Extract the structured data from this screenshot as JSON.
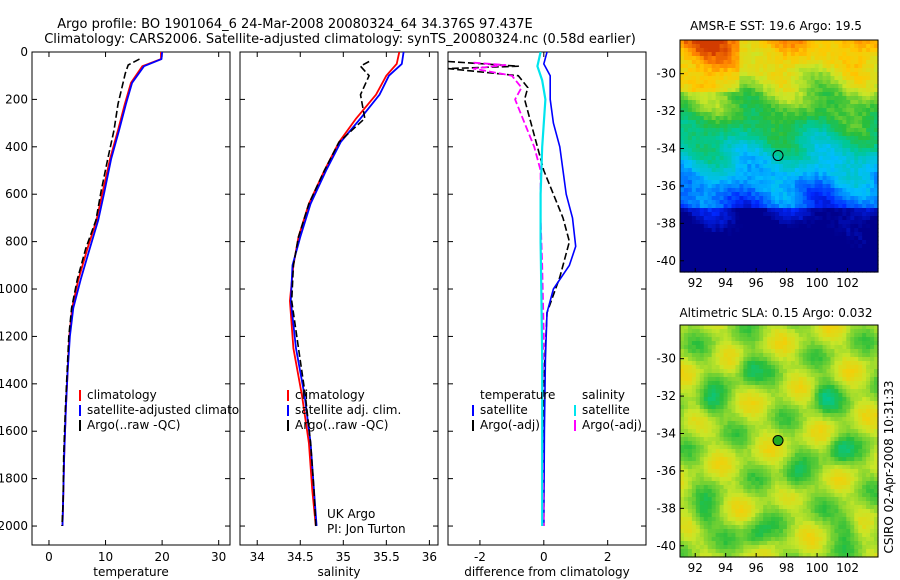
{
  "header": {
    "line1": "Argo profile: BO 1901064_6 24-Mar-2008 20080324_64 34.376S 97.437E",
    "line2": "Climatology: CARS2006. Satellite-adjusted climatology: synTS_20080324.nc (0.58d earlier)"
  },
  "side_label": "CSIRO 02-Apr-2008 10:31:33",
  "chart_data": [
    {
      "id": "temperature",
      "type": "line",
      "xlabel": "temperature",
      "xlim": [
        -3,
        32
      ],
      "ylim": [
        0,
        2080
      ],
      "xticks": [
        0,
        10,
        20,
        30
      ],
      "yticks": [
        0,
        200,
        400,
        600,
        800,
        1000,
        1200,
        1400,
        1600,
        1800,
        2000
      ],
      "legend": [
        {
          "label": "climatology",
          "color": "#ff0000"
        },
        {
          "label": "satellite-adjusted climatology",
          "color": "#0000ff"
        },
        {
          "label": "Argo(..raw -QC)",
          "color": "#000000"
        }
      ],
      "series": [
        {
          "name": "climatology",
          "color": "#ff0000",
          "dash": false,
          "width": 1.8,
          "x": [
            19.8,
            19.8,
            16.5,
            14.5,
            13.4,
            12.2,
            10.8,
            9.5,
            8.4,
            6.8,
            5.2,
            4.1,
            3.6,
            3.3,
            3.0,
            2.7,
            2.5,
            2.4
          ],
          "y": [
            0,
            30,
            60,
            130,
            220,
            330,
            450,
            590,
            710,
            830,
            960,
            1080,
            1200,
            1350,
            1500,
            1700,
            1900,
            2000
          ]
        },
        {
          "name": "satellite-adjusted climatology",
          "color": "#0000ff",
          "dash": false,
          "width": 1.8,
          "x": [
            20.0,
            19.9,
            16.8,
            14.7,
            13.6,
            12.4,
            11.0,
            9.8,
            8.7,
            7.2,
            5.6,
            4.3,
            3.7,
            3.3,
            3.0,
            2.7,
            2.5,
            2.4
          ],
          "y": [
            0,
            30,
            60,
            130,
            220,
            330,
            450,
            590,
            710,
            830,
            960,
            1080,
            1200,
            1350,
            1500,
            1700,
            1900,
            2000
          ]
        },
        {
          "name": "Argo(..raw -QC)",
          "color": "#000000",
          "dash": true,
          "width": 1.6,
          "x": [
            16.0,
            14.0,
            13.5,
            13.0,
            12.2,
            11.5,
            10.4,
            9.2,
            8.3,
            6.5,
            5.0,
            4.0,
            3.5,
            3.2,
            2.9,
            2.6,
            2.5,
            2.3
          ],
          "y": [
            30,
            55,
            90,
            140,
            220,
            330,
            450,
            590,
            710,
            830,
            960,
            1080,
            1200,
            1350,
            1500,
            1700,
            1900,
            2000
          ]
        }
      ]
    },
    {
      "id": "salinity",
      "type": "line",
      "xlabel": "salinity",
      "xlim": [
        33.8,
        36.1
      ],
      "ylim": [
        0,
        2080
      ],
      "xticks": [
        34,
        34.5,
        35,
        35.5,
        36
      ],
      "legend": [
        {
          "label": "climatology",
          "color": "#ff0000"
        },
        {
          "label": "satellite adj. clim.",
          "color": "#0000ff"
        },
        {
          "label": "Argo(..raw -QC)",
          "color": "#000000"
        }
      ],
      "annotation": [
        "UK Argo",
        "PI: Jon Turton"
      ],
      "series": [
        {
          "name": "climatology",
          "color": "#ff0000",
          "dash": false,
          "width": 1.8,
          "x": [
            35.65,
            35.62,
            35.5,
            35.38,
            35.15,
            34.95,
            34.78,
            34.6,
            34.48,
            34.42,
            34.38,
            34.42,
            34.52,
            34.6,
            34.64,
            34.68
          ],
          "y": [
            0,
            50,
            100,
            180,
            280,
            380,
            500,
            640,
            780,
            900,
            1050,
            1250,
            1450,
            1650,
            1850,
            2000
          ]
        },
        {
          "name": "satellite adj. clim.",
          "color": "#0000ff",
          "dash": false,
          "width": 1.8,
          "x": [
            35.7,
            35.68,
            35.53,
            35.42,
            35.2,
            34.97,
            34.8,
            34.62,
            34.5,
            34.41,
            34.39,
            34.45,
            34.55,
            34.62,
            34.66,
            34.69
          ],
          "y": [
            0,
            50,
            100,
            180,
            280,
            380,
            500,
            640,
            780,
            900,
            1050,
            1250,
            1450,
            1650,
            1850,
            2000
          ]
        },
        {
          "name": "Argo(..raw -QC)",
          "color": "#000000",
          "dash": true,
          "width": 1.6,
          "x": [
            35.3,
            35.2,
            35.3,
            35.2,
            35.25,
            34.95,
            34.78,
            34.6,
            34.48,
            34.42,
            34.4,
            34.48,
            34.56,
            34.62,
            34.66,
            34.68
          ],
          "y": [
            40,
            60,
            100,
            180,
            280,
            380,
            500,
            640,
            780,
            900,
            1050,
            1250,
            1450,
            1650,
            1850,
            2000
          ]
        }
      ]
    },
    {
      "id": "difference",
      "type": "line",
      "xlabel": "difference from climatology",
      "xlim": [
        -3,
        3.2
      ],
      "ylim": [
        0,
        2080
      ],
      "xticks": [
        -2,
        0,
        2
      ],
      "legend_left": {
        "title": "temperature",
        "items": [
          {
            "label": "satellite",
            "color": "#0000ff"
          },
          {
            "label": "Argo(-adj)",
            "color": "#000000"
          }
        ]
      },
      "legend_right": {
        "title": "salinity",
        "items": [
          {
            "label": "satellite",
            "color": "#00e5ee"
          },
          {
            "label": "Argo(-adj)",
            "color": "#ff00ff"
          }
        ]
      },
      "series": [
        {
          "name": "temperature Argo(-adj)",
          "color": "#000000",
          "dash": true,
          "width": 1.6,
          "x": [
            -3.0,
            -0.8,
            -3.0,
            -0.8,
            -0.5,
            -0.6,
            -0.4,
            -0.2,
            0.0,
            0.3,
            0.6,
            0.8,
            0.5,
            0.1,
            0.0,
            0.0
          ],
          "y": [
            40,
            60,
            70,
            100,
            150,
            200,
            300,
            400,
            500,
            600,
            700,
            800,
            950,
            1100,
            1400,
            2000
          ]
        },
        {
          "name": "temperature satellite",
          "color": "#0000ff",
          "dash": false,
          "width": 1.6,
          "x": [
            0.1,
            0.0,
            0.2,
            0.2,
            0.3,
            0.5,
            0.6,
            0.7,
            0.9,
            1.0,
            0.8,
            0.3,
            0.1,
            0.05,
            0.02,
            0.0
          ],
          "y": [
            0,
            50,
            100,
            200,
            300,
            400,
            500,
            600,
            700,
            820,
            900,
            1000,
            1100,
            1300,
            1600,
            2000
          ]
        },
        {
          "name": "salinity Argo(-adj)",
          "color": "#ff00ff",
          "dash": true,
          "width": 1.8,
          "x": [
            -2.2,
            -1.2,
            -2.2,
            -1.0,
            -0.7,
            -0.9,
            -0.6,
            -0.3,
            -0.1,
            -0.1,
            -0.05,
            0.0,
            -0.05,
            0.0
          ],
          "y": [
            45,
            55,
            70,
            100,
            150,
            200,
            300,
            400,
            500,
            700,
            900,
            1200,
            1500,
            2000
          ]
        },
        {
          "name": "salinity satellite",
          "color": "#00e5ee",
          "dash": false,
          "width": 2.2,
          "x": [
            -0.1,
            -0.2,
            -0.05,
            0.05,
            0.0,
            -0.05,
            -0.1,
            -0.1,
            -0.08,
            -0.05,
            -0.05,
            -0.05
          ],
          "y": [
            0,
            60,
            120,
            200,
            300,
            400,
            600,
            800,
            1000,
            1300,
            1600,
            2000
          ]
        }
      ]
    },
    {
      "id": "sst_map",
      "type": "heatmap",
      "title": "AMSR-E SST: 19.6  Argo: 19.5",
      "xlim": [
        91,
        104
      ],
      "ylim": [
        -40.6,
        -28.2
      ],
      "xticks": [
        92,
        94,
        96,
        98,
        100,
        102
      ],
      "yticks": [
        -30,
        -32,
        -34,
        -36,
        -38,
        -40
      ],
      "marker": {
        "lon": 97.437,
        "lat": -34.376,
        "fill": "none"
      }
    },
    {
      "id": "sla_map",
      "type": "heatmap",
      "title": "Altimetric SLA: 0.15  Argo: 0.032",
      "xlim": [
        91,
        104
      ],
      "ylim": [
        -40.6,
        -28.2
      ],
      "xticks": [
        92,
        94,
        96,
        98,
        100,
        102
      ],
      "yticks": [
        -30,
        -32,
        -34,
        -36,
        -38,
        -40
      ],
      "marker": {
        "lon": 97.437,
        "lat": -34.376,
        "fill": "#22aa22"
      }
    }
  ]
}
